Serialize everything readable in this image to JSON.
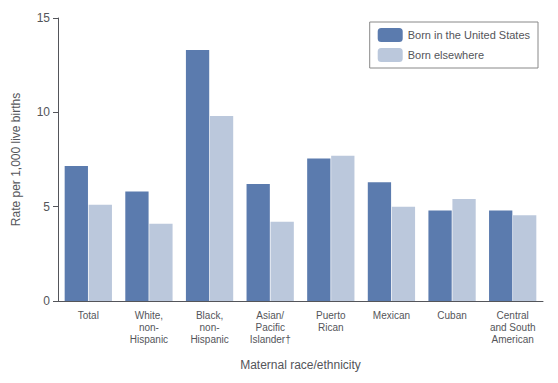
{
  "chart_data": {
    "type": "bar",
    "categories": [
      "Total",
      "White,\nnon-\nHispanic",
      "Black,\nnon-\nHispanic",
      "Asian/\nPacific\nIslander†",
      "Puerto\nRican",
      "Mexican",
      "Cuban",
      "Central\nand South\nAmerican"
    ],
    "series": [
      {
        "name": "Born in the United States",
        "color": "#5b7bae",
        "values": [
          7.15,
          5.8,
          13.3,
          6.2,
          7.55,
          6.3,
          4.8,
          4.8
        ]
      },
      {
        "name": "Born elsewhere",
        "color": "#bbc8dc",
        "values": [
          5.1,
          4.1,
          9.8,
          4.2,
          7.7,
          5.0,
          5.4,
          4.55
        ]
      }
    ],
    "xlabel": "Maternal race/ethnicity",
    "ylabel": "Rate per 1,000 live births",
    "ylim": [
      0,
      15
    ],
    "yticks": [
      0,
      5,
      10,
      15
    ],
    "grid": false,
    "legend": "upper right"
  }
}
